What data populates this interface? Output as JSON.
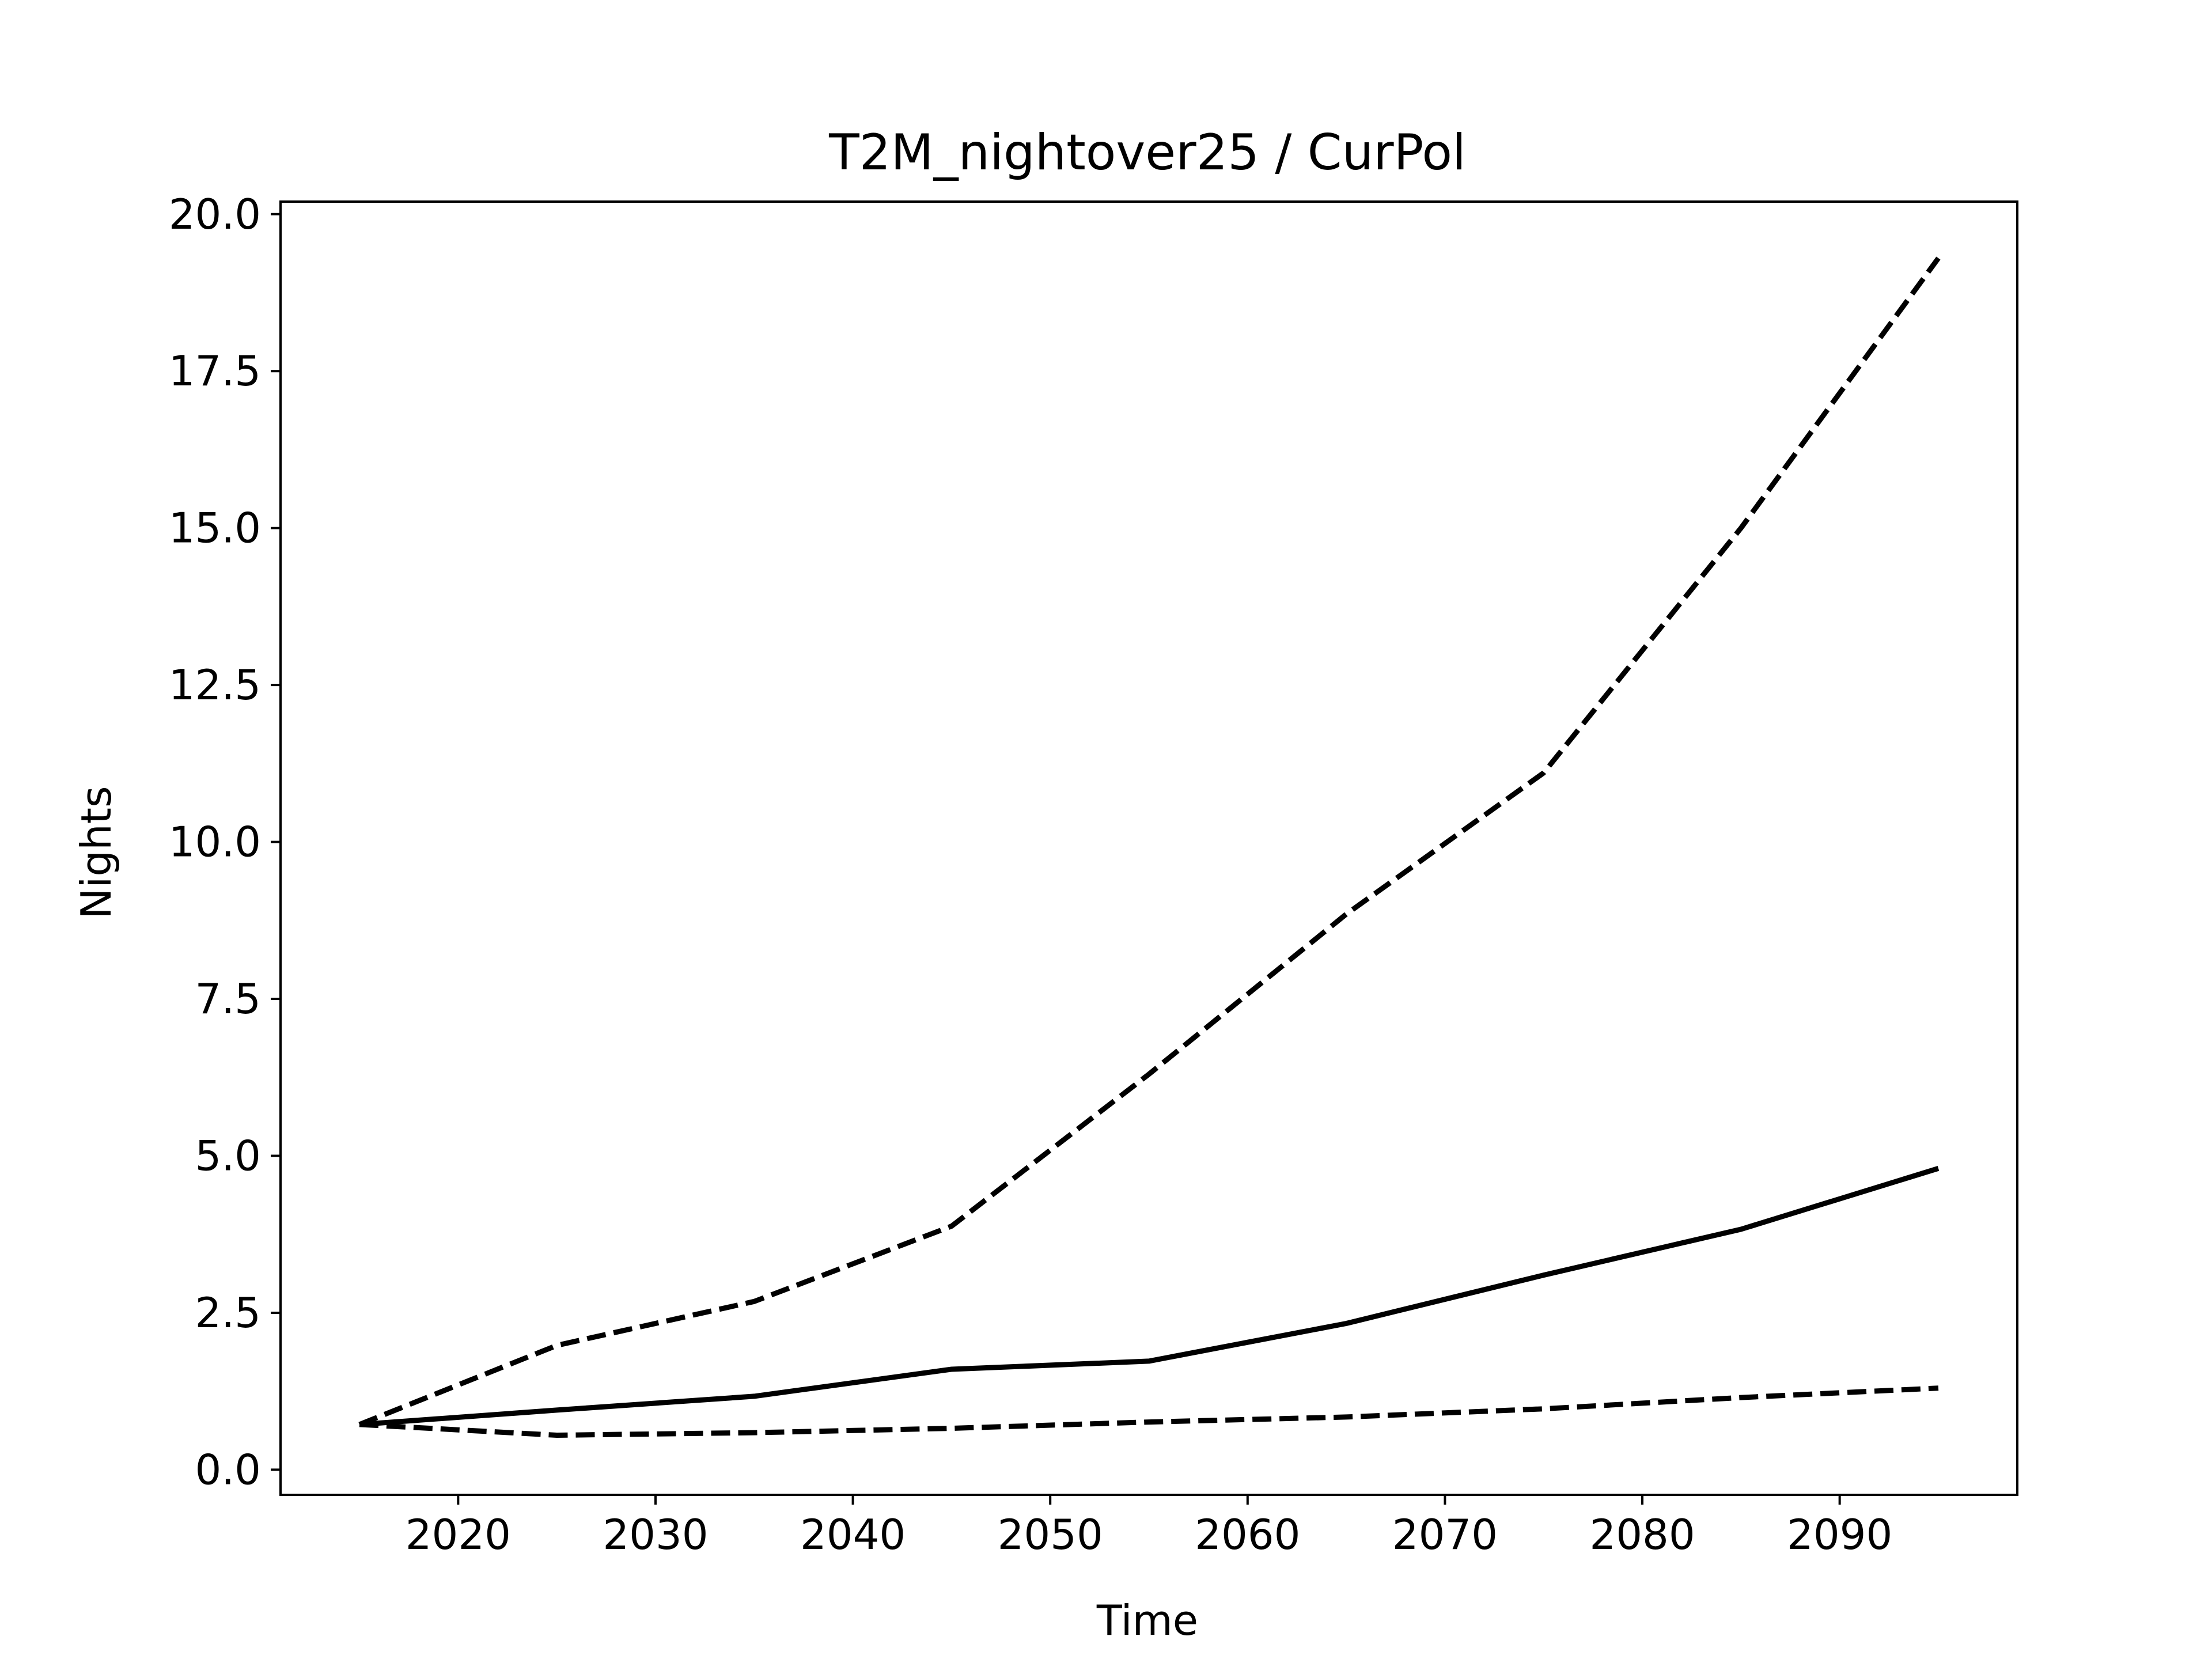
{
  "chart_data": {
    "type": "line",
    "title": "T2M_nightover25 / CurPol",
    "xlabel": "Time",
    "ylabel": "Nights",
    "xlim": [
      2011,
      2099
    ],
    "ylim": [
      -0.4,
      20.2
    ],
    "xticks": [
      2020,
      2030,
      2040,
      2050,
      2060,
      2070,
      2080,
      2090
    ],
    "yticks": [
      0.0,
      2.5,
      5.0,
      7.5,
      10.0,
      12.5,
      15.0,
      17.5,
      20.0
    ],
    "grid": false,
    "x": [
      2015,
      2025,
      2035,
      2045,
      2055,
      2065,
      2075,
      2085,
      2095
    ],
    "series": [
      {
        "values": [
          0.72,
          1.98,
          2.68,
          3.88,
          6.3,
          8.85,
          11.1,
          15.0,
          19.3
        ],
        "style": "dashed",
        "color": "#000000"
      },
      {
        "values": [
          0.72,
          0.95,
          1.17,
          1.6,
          1.73,
          2.33,
          3.1,
          3.83,
          4.8
        ],
        "style": "solid",
        "color": "#000000"
      },
      {
        "values": [
          0.72,
          0.55,
          0.59,
          0.66,
          0.76,
          0.84,
          0.97,
          1.15,
          1.3
        ],
        "style": "dashed",
        "color": "#000000"
      }
    ]
  }
}
